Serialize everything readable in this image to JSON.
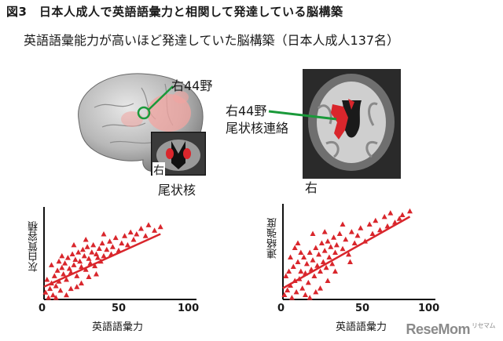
{
  "figure": {
    "title": "図3　日本人成人で英語語彙力と相関して発達している脳構築",
    "subtitle": "英語語彙能力が高いほど発達していた脳構築（日本人成人137名）"
  },
  "brain_left": {
    "region_label": "右44野",
    "inset_side_label": "右",
    "inset_caption": "尾状核"
  },
  "brain_right": {
    "region_label_line1": "右44野",
    "region_label_line2": "尾状核連絡",
    "side_label": "右"
  },
  "chart_data": [
    {
      "type": "scatter",
      "xlabel": "英語語彙力",
      "ylabel": "灰白質容積",
      "xlim": [
        0,
        100
      ],
      "x_ticks": [
        "0",
        "50",
        "100"
      ],
      "marker_color": "#d9262c",
      "trendline": {
        "x": [
          0,
          78
        ],
        "y": [
          0.14,
          0.72
        ]
      },
      "points": [
        [
          1,
          0.08
        ],
        [
          2,
          0.22
        ],
        [
          3,
          0.02
        ],
        [
          4,
          0.12
        ],
        [
          5,
          0.18
        ],
        [
          6,
          0.05
        ],
        [
          7,
          0.26
        ],
        [
          8,
          0.15
        ],
        [
          9,
          0.32
        ],
        [
          10,
          0.2
        ],
        [
          11,
          0.1
        ],
        [
          12,
          0.35
        ],
        [
          13,
          0.28
        ],
        [
          14,
          0.4
        ],
        [
          15,
          0.22
        ],
        [
          16,
          0.46
        ],
        [
          17,
          0.34
        ],
        [
          18,
          0.3
        ],
        [
          19,
          0.5
        ],
        [
          20,
          0.38
        ],
        [
          21,
          0.44
        ],
        [
          22,
          0.26
        ],
        [
          23,
          0.52
        ],
        [
          24,
          0.42
        ],
        [
          25,
          0.36
        ],
        [
          26,
          0.55
        ],
        [
          27,
          0.48
        ],
        [
          28,
          0.33
        ],
        [
          29,
          0.58
        ],
        [
          30,
          0.45
        ],
        [
          31,
          0.4
        ],
        [
          32,
          0.52
        ],
        [
          33,
          0.6
        ],
        [
          34,
          0.37
        ],
        [
          35,
          0.5
        ],
        [
          36,
          0.46
        ],
        [
          37,
          0.56
        ],
        [
          38,
          0.42
        ],
        [
          39,
          0.62
        ],
        [
          40,
          0.48
        ],
        [
          42,
          0.55
        ],
        [
          44,
          0.64
        ],
        [
          45,
          0.5
        ],
        [
          46,
          0.58
        ],
        [
          48,
          0.68
        ],
        [
          50,
          0.54
        ],
        [
          52,
          0.62
        ],
        [
          54,
          0.7
        ],
        [
          56,
          0.6
        ],
        [
          58,
          0.74
        ],
        [
          60,
          0.66
        ],
        [
          62,
          0.72
        ],
        [
          65,
          0.78
        ],
        [
          68,
          0.7
        ],
        [
          70,
          0.82
        ],
        [
          74,
          0.76
        ],
        [
          78,
          0.8
        ],
        [
          20,
          0.6
        ],
        [
          25,
          0.18
        ],
        [
          30,
          0.25
        ],
        [
          15,
          0.05
        ],
        [
          10,
          0.42
        ],
        [
          35,
          0.28
        ],
        [
          8,
          0.02
        ],
        [
          12,
          0.48
        ],
        [
          18,
          0.12
        ],
        [
          28,
          0.66
        ],
        [
          40,
          0.72
        ],
        [
          22,
          0.14
        ],
        [
          5,
          0.38
        ]
      ]
    },
    {
      "type": "scatter",
      "xlabel": "英語語彙力",
      "ylabel": "連絡強度",
      "xlim": [
        0,
        100
      ],
      "x_ticks": [
        "0",
        "50",
        "100"
      ],
      "marker_color": "#d9262c",
      "trendline": {
        "x": [
          0,
          85
        ],
        "y": [
          0.12,
          0.88
        ]
      },
      "points": [
        [
          1,
          0.05
        ],
        [
          2,
          0.25
        ],
        [
          3,
          0.1
        ],
        [
          4,
          0.3
        ],
        [
          5,
          0.15
        ],
        [
          6,
          0.02
        ],
        [
          7,
          0.35
        ],
        [
          8,
          0.2
        ],
        [
          9,
          0.08
        ],
        [
          10,
          0.4
        ],
        [
          11,
          0.22
        ],
        [
          12,
          0.3
        ],
        [
          13,
          0.12
        ],
        [
          14,
          0.45
        ],
        [
          15,
          0.28
        ],
        [
          16,
          0.38
        ],
        [
          17,
          0.18
        ],
        [
          18,
          0.5
        ],
        [
          19,
          0.32
        ],
        [
          20,
          0.42
        ],
        [
          21,
          0.25
        ],
        [
          22,
          0.55
        ],
        [
          23,
          0.36
        ],
        [
          24,
          0.48
        ],
        [
          25,
          0.3
        ],
        [
          26,
          0.6
        ],
        [
          27,
          0.4
        ],
        [
          28,
          0.52
        ],
        [
          29,
          0.34
        ],
        [
          30,
          0.62
        ],
        [
          31,
          0.45
        ],
        [
          32,
          0.56
        ],
        [
          33,
          0.38
        ],
        [
          34,
          0.66
        ],
        [
          35,
          0.5
        ],
        [
          36,
          0.58
        ],
        [
          38,
          0.7
        ],
        [
          40,
          0.54
        ],
        [
          42,
          0.64
        ],
        [
          44,
          0.48
        ],
        [
          46,
          0.72
        ],
        [
          48,
          0.6
        ],
        [
          50,
          0.68
        ],
        [
          52,
          0.76
        ],
        [
          55,
          0.62
        ],
        [
          58,
          0.8
        ],
        [
          60,
          0.7
        ],
        [
          62,
          0.84
        ],
        [
          65,
          0.74
        ],
        [
          68,
          0.88
        ],
        [
          70,
          0.78
        ],
        [
          72,
          0.92
        ],
        [
          75,
          0.82
        ],
        [
          78,
          0.86
        ],
        [
          80,
          0.9
        ],
        [
          85,
          0.94
        ],
        [
          10,
          0.6
        ],
        [
          15,
          0.05
        ],
        [
          20,
          0.7
        ],
        [
          25,
          0.12
        ],
        [
          30,
          0.2
        ],
        [
          12,
          0.5
        ],
        [
          5,
          0.45
        ],
        [
          18,
          0.02
        ],
        [
          35,
          0.3
        ],
        [
          40,
          0.8
        ],
        [
          8,
          0.55
        ],
        [
          22,
          0.08
        ],
        [
          45,
          0.4
        ],
        [
          28,
          0.72
        ]
      ]
    }
  ],
  "brand": {
    "name": "ReseMom",
    "tagline": "リセマム"
  }
}
